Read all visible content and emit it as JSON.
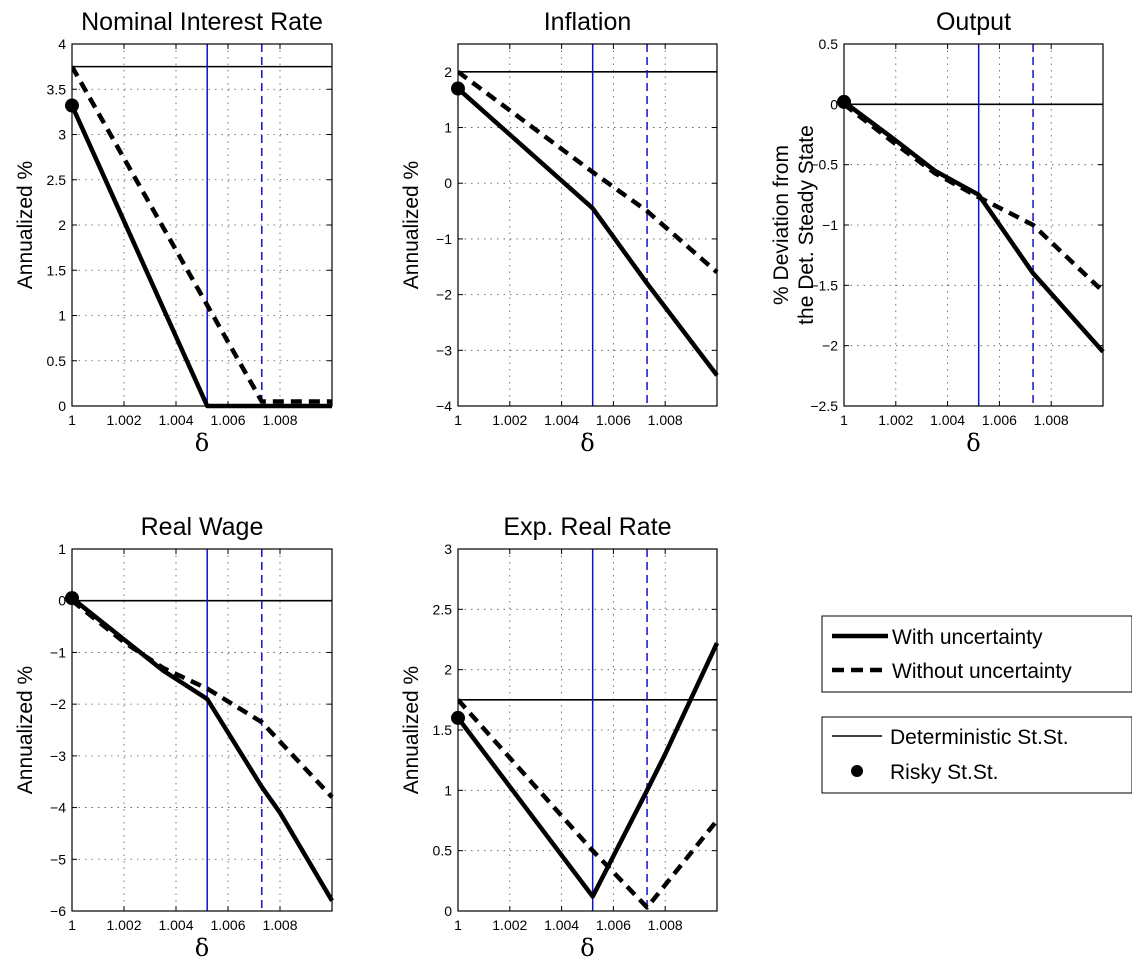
{
  "chart_data": [
    {
      "type": "line",
      "title": "Nominal Interest Rate",
      "xlabel": "δ",
      "ylabel": "Annualized %",
      "ylabel_lines": [
        "Annualized %"
      ],
      "xlim": [
        1,
        1.01
      ],
      "ylim": [
        0,
        4
      ],
      "xticks": [
        1,
        1.002,
        1.004,
        1.006,
        1.008
      ],
      "xtick_labels": [
        "1",
        "1.002",
        "1.004",
        "1.006",
        "1.008"
      ],
      "yticks": [
        0,
        0.5,
        1,
        1.5,
        2,
        2.5,
        3,
        3.5,
        4
      ],
      "ytick_labels": [
        "0",
        "0.5",
        "1",
        "1.5",
        "2",
        "2.5",
        "3",
        "3.5",
        "4"
      ],
      "grid": true,
      "series": [
        {
          "name": "With uncertainty",
          "style": "solid-thick",
          "x": [
            1,
            1.0052,
            1.01
          ],
          "y": [
            3.32,
            0,
            0
          ]
        },
        {
          "name": "Without uncertainty",
          "style": "dashed-thick",
          "x": [
            1,
            1.0073,
            1.01
          ],
          "y": [
            3.75,
            0.05,
            0.05
          ]
        }
      ],
      "deterministic_steady_state": 3.75,
      "risky_steady_state": {
        "x": 1,
        "y": 3.32
      },
      "vlines": [
        {
          "x": 1.0052,
          "style": "solid"
        },
        {
          "x": 1.0073,
          "style": "dashed"
        }
      ]
    },
    {
      "type": "line",
      "title": "Inflation",
      "xlabel": "δ",
      "ylabel": "Annualized %",
      "ylabel_lines": [
        "Annualized %"
      ],
      "xlim": [
        1,
        1.01
      ],
      "ylim": [
        -4,
        2.5
      ],
      "xticks": [
        1,
        1.002,
        1.004,
        1.006,
        1.008
      ],
      "xtick_labels": [
        "1",
        "1.002",
        "1.004",
        "1.006",
        "1.008"
      ],
      "yticks": [
        -4,
        -3,
        -2,
        -1,
        0,
        1,
        2
      ],
      "ytick_labels": [
        "−4",
        "−3",
        "−2",
        "−1",
        "0",
        "1",
        "2"
      ],
      "grid": true,
      "series": [
        {
          "name": "With uncertainty",
          "style": "solid-thick",
          "x": [
            1,
            1.0052,
            1.0073,
            1.01
          ],
          "y": [
            1.7,
            -0.45,
            -1.8,
            -3.45
          ]
        },
        {
          "name": "Without uncertainty",
          "style": "dashed-thick",
          "x": [
            1,
            1.0052,
            1.0073,
            1.01
          ],
          "y": [
            2.0,
            0.2,
            -0.5,
            -1.6
          ]
        }
      ],
      "deterministic_steady_state": 2.0,
      "risky_steady_state": {
        "x": 1,
        "y": 1.7
      },
      "vlines": [
        {
          "x": 1.0052,
          "style": "solid"
        },
        {
          "x": 1.0073,
          "style": "dashed"
        }
      ]
    },
    {
      "type": "line",
      "title": "Output",
      "xlabel": "δ",
      "ylabel": "% Deviation from the Det. Steady State",
      "ylabel_lines": [
        "% Deviation from",
        "the Det. Steady State"
      ],
      "xlim": [
        1,
        1.01
      ],
      "ylim": [
        -2.5,
        0.5
      ],
      "xticks": [
        1,
        1.002,
        1.004,
        1.006,
        1.008
      ],
      "xtick_labels": [
        "1",
        "1.002",
        "1.004",
        "1.006",
        "1.008"
      ],
      "yticks": [
        -2.5,
        -2,
        -1.5,
        -1,
        -0.5,
        0,
        0.5
      ],
      "ytick_labels": [
        "−2.5",
        "−2",
        "−1.5",
        "−1",
        "−0.5",
        "0",
        "0.5"
      ],
      "grid": true,
      "series": [
        {
          "name": "With uncertainty",
          "style": "solid-thick",
          "x": [
            1,
            1.002,
            1.0035,
            1.0052,
            1.0073,
            1.01
          ],
          "y": [
            0.02,
            -0.3,
            -0.55,
            -0.75,
            -1.4,
            -2.05
          ]
        },
        {
          "name": "Without uncertainty",
          "style": "dashed-thick",
          "x": [
            1,
            1.002,
            1.0035,
            1.0052,
            1.0073,
            1.01
          ],
          "y": [
            0,
            -0.33,
            -0.57,
            -0.77,
            -1.0,
            -1.55
          ]
        }
      ],
      "deterministic_steady_state": 0,
      "risky_steady_state": {
        "x": 1,
        "y": 0.02
      },
      "vlines": [
        {
          "x": 1.0052,
          "style": "solid"
        },
        {
          "x": 1.0073,
          "style": "dashed"
        }
      ]
    },
    {
      "type": "line",
      "title": "Real Wage",
      "xlabel": "δ",
      "ylabel": "Annualized %",
      "ylabel_lines": [
        "Annualized %"
      ],
      "xlim": [
        1,
        1.01
      ],
      "ylim": [
        -6,
        1
      ],
      "xticks": [
        1,
        1.002,
        1.004,
        1.006,
        1.008
      ],
      "xtick_labels": [
        "1",
        "1.002",
        "1.004",
        "1.006",
        "1.008"
      ],
      "yticks": [
        -6,
        -5,
        -4,
        -3,
        -2,
        -1,
        0,
        1
      ],
      "ytick_labels": [
        "−6",
        "−5",
        "−4",
        "−3",
        "−2",
        "−1",
        "0",
        "1"
      ],
      "grid": true,
      "series": [
        {
          "name": "With uncertainty",
          "style": "solid-thick",
          "x": [
            1,
            1.002,
            1.0035,
            1.0052,
            1.0073,
            1.008,
            1.01
          ],
          "y": [
            0.05,
            -0.75,
            -1.35,
            -1.9,
            -3.6,
            -4.1,
            -5.8
          ]
        },
        {
          "name": "Without uncertainty",
          "style": "dashed-thick",
          "x": [
            1,
            1.002,
            1.0035,
            1.0052,
            1.0073,
            1.01
          ],
          "y": [
            0,
            -0.8,
            -1.3,
            -1.7,
            -2.35,
            -3.8
          ]
        }
      ],
      "deterministic_steady_state": 0,
      "risky_steady_state": {
        "x": 1,
        "y": 0.05
      },
      "vlines": [
        {
          "x": 1.0052,
          "style": "solid"
        },
        {
          "x": 1.0073,
          "style": "dashed"
        }
      ]
    },
    {
      "type": "line",
      "title": "Exp. Real Rate",
      "xlabel": "δ",
      "ylabel": "Annualized %",
      "ylabel_lines": [
        "Annualized %"
      ],
      "xlim": [
        1,
        1.01
      ],
      "ylim": [
        0,
        3
      ],
      "xticks": [
        1,
        1.002,
        1.004,
        1.006,
        1.008
      ],
      "xtick_labels": [
        "1",
        "1.002",
        "1.004",
        "1.006",
        "1.008"
      ],
      "yticks": [
        0,
        0.5,
        1,
        1.5,
        2,
        2.5,
        3
      ],
      "ytick_labels": [
        "0",
        "0.5",
        "1",
        "1.5",
        "2",
        "2.5",
        "3"
      ],
      "grid": true,
      "series": [
        {
          "name": "With uncertainty",
          "style": "solid-thick",
          "x": [
            1,
            1.0052,
            1.0073,
            1.008,
            1.01
          ],
          "y": [
            1.6,
            0.12,
            1.0,
            1.3,
            2.22
          ]
        },
        {
          "name": "Without uncertainty",
          "style": "dashed-thick",
          "x": [
            1,
            1.0052,
            1.0073,
            1.01
          ],
          "y": [
            1.75,
            0.5,
            0.03,
            0.75
          ]
        }
      ],
      "deterministic_steady_state": 1.75,
      "risky_steady_state": {
        "x": 1,
        "y": 1.6
      },
      "vlines": [
        {
          "x": 1.0052,
          "style": "solid"
        },
        {
          "x": 1.0073,
          "style": "dashed"
        }
      ]
    }
  ],
  "legend": {
    "series": [
      {
        "label": "With uncertainty",
        "style": "solid-thick"
      },
      {
        "label": "Without uncertainty",
        "style": "dashed-thick"
      }
    ],
    "steady_states": [
      {
        "label": "Deterministic St.St.",
        "style": "solid-thin"
      },
      {
        "label": "Risky St.St.",
        "style": "dot"
      }
    ]
  },
  "colors": {
    "series": "#000000",
    "vline": "#1010cc",
    "steady_state": "#000000",
    "grid": "#555555"
  }
}
